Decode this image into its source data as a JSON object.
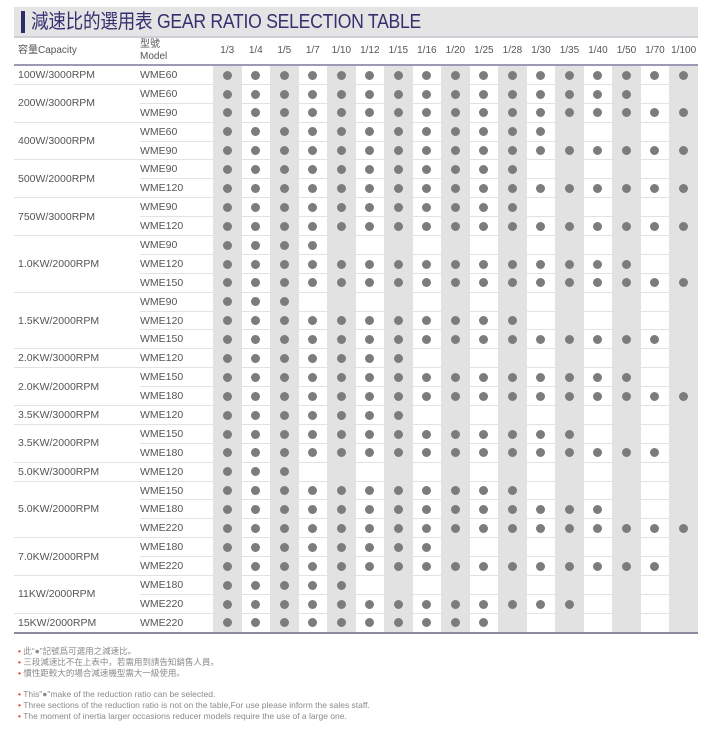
{
  "title": "減速比的選用表 GEAR RATIO SELECTION TABLE",
  "header": {
    "capacity": "容量Capacity",
    "model_zh": "型號",
    "model_en": "Model"
  },
  "ratios": [
    "1/3",
    "1/4",
    "1/5",
    "1/7",
    "1/10",
    "1/12",
    "1/15",
    "1/16",
    "1/20",
    "1/25",
    "1/28",
    "1/30",
    "1/35",
    "1/40",
    "1/50",
    "1/70",
    "1/100"
  ],
  "colors": {
    "title": "#35306f",
    "dot": "#7c7c7c",
    "shade": "#e2e2e2",
    "bullet": "#d23a3a"
  },
  "groups": [
    {
      "capacity": "100W/3000RPM",
      "models": [
        {
          "model": "WME60",
          "available": 17
        }
      ]
    },
    {
      "capacity": "200W/3000RPM",
      "models": [
        {
          "model": "WME60",
          "available": 15
        },
        {
          "model": "WME90",
          "available": 17
        }
      ]
    },
    {
      "capacity": "400W/3000RPM",
      "models": [
        {
          "model": "WME60",
          "available": 12
        },
        {
          "model": "WME90",
          "available": 17
        }
      ]
    },
    {
      "capacity": "500W/2000RPM",
      "models": [
        {
          "model": "WME90",
          "available": 11
        },
        {
          "model": "WME120",
          "available": 17
        }
      ]
    },
    {
      "capacity": "750W/3000RPM",
      "models": [
        {
          "model": "WME90",
          "available": 11
        },
        {
          "model": "WME120",
          "available": 17
        }
      ]
    },
    {
      "capacity": "1.0KW/2000RPM",
      "models": [
        {
          "model": "WME90",
          "available": 4
        },
        {
          "model": "WME120",
          "available": 15
        },
        {
          "model": "WME150",
          "available": 17
        }
      ]
    },
    {
      "capacity": "1.5KW/2000RPM",
      "models": [
        {
          "model": "WME90",
          "available": 3
        },
        {
          "model": "WME120",
          "available": 11
        },
        {
          "model": "WME150",
          "available": 16
        }
      ]
    },
    {
      "capacity": "2.0KW/3000RPM",
      "models": [
        {
          "model": "WME120",
          "available": 7
        }
      ]
    },
    {
      "capacity": "2.0KW/2000RPM",
      "models": [
        {
          "model": "WME150",
          "available": 15
        },
        {
          "model": "WME180",
          "available": 17
        }
      ]
    },
    {
      "capacity": "3.5KW/3000RPM",
      "models": [
        {
          "model": "WME120",
          "available": 7
        }
      ]
    },
    {
      "capacity": "3.5KW/2000RPM",
      "models": [
        {
          "model": "WME150",
          "available": 13
        },
        {
          "model": "WME180",
          "available": 16
        }
      ]
    },
    {
      "capacity": "5.0KW/3000RPM",
      "models": [
        {
          "model": "WME120",
          "available": 3
        }
      ]
    },
    {
      "capacity": "5.0KW/2000RPM",
      "models": [
        {
          "model": "WME150",
          "available": 11
        },
        {
          "model": "WME180",
          "available": 14
        },
        {
          "model": "WME220",
          "available": 17
        }
      ]
    },
    {
      "capacity": "7.0KW/2000RPM",
      "models": [
        {
          "model": "WME180",
          "available": 8
        },
        {
          "model": "WME220",
          "available": 16
        }
      ]
    },
    {
      "capacity": "11KW/2000RPM",
      "models": [
        {
          "model": "WME180",
          "available": 5
        },
        {
          "model": "WME220",
          "available": 13
        }
      ]
    },
    {
      "capacity": "15KW/2000RPM",
      "models": [
        {
          "model": "WME220",
          "available": 10
        }
      ]
    }
  ],
  "notes_zh": [
    "此“●”記號爲可選用之減速比。",
    "三段減速比不在上表中，若需用到請告知銷售人員。",
    "慣性距較大的場合減速機型需大一級使用。"
  ],
  "notes_en": [
    "This\"●\"make of the reduction ratio can be selected.",
    "Three sections of the reduction ratio is not on the table,For use please inform the sales staff.",
    "The moment of inertia larger occasions reducer models require the use of a large one."
  ]
}
